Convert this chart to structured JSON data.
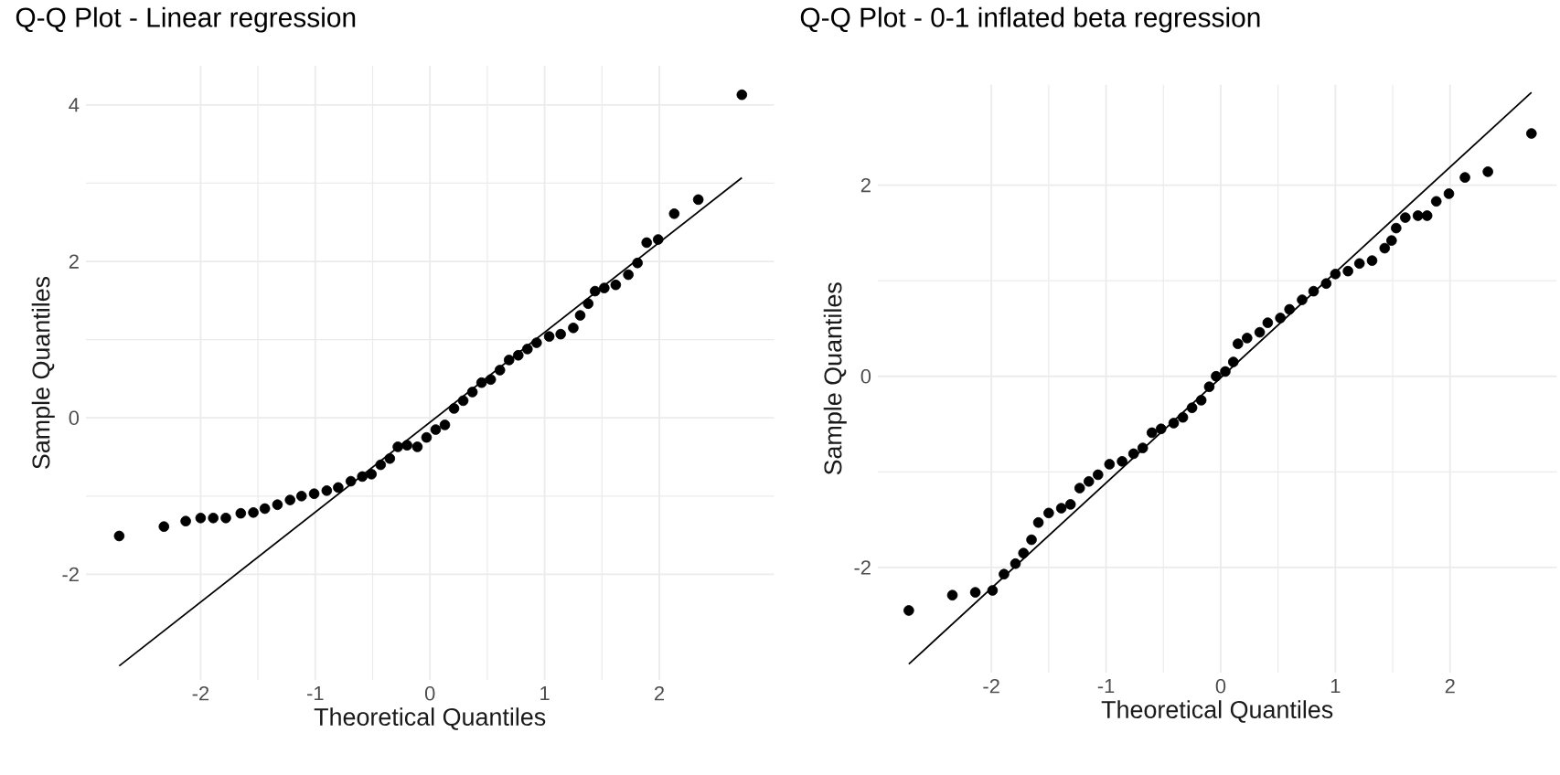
{
  "chart_data": [
    {
      "type": "scatter",
      "title": "Q-Q Plot - Linear regression",
      "xlabel": "Theoretical Quantiles",
      "ylabel": "Sample Quantiles",
      "xlim": [
        -3,
        3
      ],
      "ylim": [
        -3.35,
        4.5
      ],
      "xticks": [
        -2,
        -1,
        0,
        1,
        2
      ],
      "yticks": [
        -2,
        0,
        2,
        4
      ],
      "grid": true,
      "series": [
        {
          "color": "#000000",
          "x": [
            -2.71,
            -2.32,
            -2.13,
            -2.0,
            -1.89,
            -1.78,
            -1.65,
            -1.54,
            -1.44,
            -1.33,
            -1.22,
            -1.12,
            -1.01,
            -0.9,
            -0.8,
            -0.69,
            -0.59,
            -0.51,
            -0.43,
            -0.35,
            -0.28,
            -0.2,
            -0.11,
            -0.03,
            0.05,
            0.13,
            0.21,
            0.29,
            0.37,
            0.45,
            0.53,
            0.61,
            0.69,
            0.77,
            0.85,
            0.93,
            1.04,
            1.14,
            1.25,
            1.31,
            1.38,
            1.44,
            1.52,
            1.62,
            1.73,
            1.81,
            1.89,
            1.99,
            2.13,
            2.34,
            2.72
          ],
          "values": [
            -1.51,
            -1.39,
            -1.32,
            -1.28,
            -1.28,
            -1.28,
            -1.22,
            -1.21,
            -1.16,
            -1.11,
            -1.05,
            -1.0,
            -0.97,
            -0.93,
            -0.89,
            -0.81,
            -0.75,
            -0.72,
            -0.6,
            -0.52,
            -0.37,
            -0.35,
            -0.37,
            -0.25,
            -0.15,
            -0.09,
            0.12,
            0.22,
            0.33,
            0.45,
            0.49,
            0.61,
            0.74,
            0.8,
            0.88,
            0.96,
            1.04,
            1.07,
            1.15,
            1.31,
            1.46,
            1.62,
            1.66,
            1.7,
            1.83,
            1.98,
            2.24,
            2.28,
            2.61,
            2.79,
            4.13
          ]
        },
        {
          "type": "line",
          "color": "#000000",
          "x": [
            -2.71,
            2.72
          ],
          "values": [
            -3.17,
            3.07
          ]
        }
      ]
    },
    {
      "type": "scatter",
      "title": "Q-Q Plot - 0-1 inflated beta regression",
      "xlabel": "Theoretical Quantiles",
      "ylabel": "Sample Quantiles",
      "xlim": [
        -2.99,
        2.93
      ],
      "ylim": [
        -3.1,
        3.05
      ],
      "xticks": [
        -2,
        -1,
        0,
        1,
        2
      ],
      "yticks": [
        -2,
        0,
        2
      ],
      "grid": true,
      "series": [
        {
          "color": "#000000",
          "x": [
            -2.72,
            -2.34,
            -2.14,
            -1.99,
            -1.89,
            -1.79,
            -1.72,
            -1.65,
            -1.59,
            -1.5,
            -1.39,
            -1.31,
            -1.23,
            -1.15,
            -1.07,
            -0.97,
            -0.86,
            -0.76,
            -0.68,
            -0.6,
            -0.52,
            -0.41,
            -0.33,
            -0.25,
            -0.17,
            -0.1,
            -0.04,
            0.04,
            0.11,
            0.15,
            0.23,
            0.34,
            0.41,
            0.52,
            0.6,
            0.71,
            0.81,
            0.92,
            1.0,
            1.11,
            1.21,
            1.32,
            1.43,
            1.49,
            1.53,
            1.61,
            1.72,
            1.8,
            1.88,
            1.99,
            2.13,
            2.33,
            2.71
          ],
          "values": [
            -2.45,
            -2.29,
            -2.26,
            -2.24,
            -2.07,
            -1.96,
            -1.85,
            -1.71,
            -1.53,
            -1.43,
            -1.38,
            -1.34,
            -1.17,
            -1.1,
            -1.03,
            -0.92,
            -0.89,
            -0.81,
            -0.75,
            -0.59,
            -0.55,
            -0.49,
            -0.43,
            -0.33,
            -0.25,
            -0.11,
            0.0,
            0.05,
            0.15,
            0.34,
            0.4,
            0.46,
            0.56,
            0.61,
            0.7,
            0.8,
            0.89,
            0.97,
            1.07,
            1.1,
            1.18,
            1.21,
            1.34,
            1.42,
            1.55,
            1.66,
            1.68,
            1.68,
            1.83,
            1.91,
            2.08,
            2.14,
            2.54
          ]
        },
        {
          "type": "line",
          "color": "#000000",
          "x": [
            -2.72,
            2.71
          ],
          "values": [
            -3.01,
            2.97
          ]
        }
      ]
    }
  ]
}
